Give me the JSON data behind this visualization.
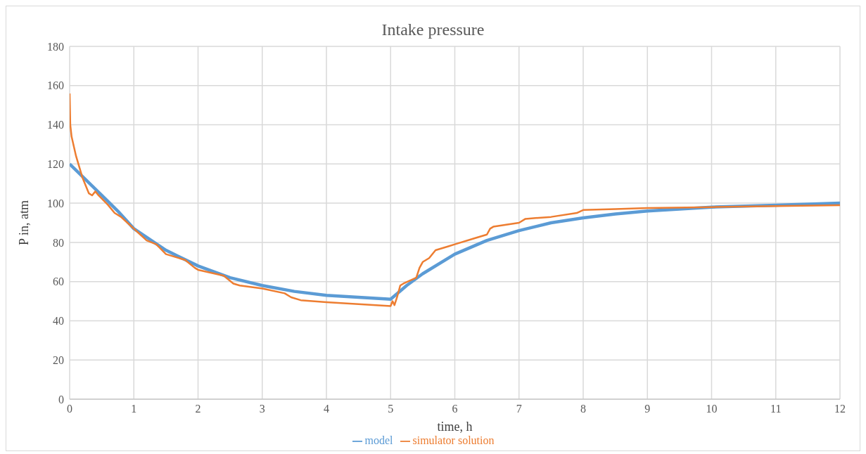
{
  "chart_data": {
    "type": "line",
    "title": "Intake pressure",
    "xlabel": "time, h",
    "ylabel": "P in, atm",
    "xlim": [
      0,
      12
    ],
    "xticks": [
      0,
      1,
      2,
      3,
      4,
      5,
      6,
      7,
      8,
      9,
      10,
      11,
      12
    ],
    "ylim": [
      0,
      180
    ],
    "yticks": [
      0,
      20,
      40,
      60,
      80,
      100,
      120,
      140,
      160,
      180
    ],
    "grid": true,
    "legend": "bottom",
    "marker": "none",
    "series": [
      {
        "name": "model",
        "color": "#5b9bd5",
        "x": [
          0,
          0.25,
          0.5,
          0.75,
          1,
          1.5,
          2,
          2.5,
          3,
          3.5,
          4,
          4.5,
          5,
          5.25,
          5.5,
          6,
          6.5,
          7,
          7.5,
          8,
          8.5,
          9,
          10,
          11,
          12
        ],
        "values": [
          120,
          112,
          104,
          96,
          87,
          76,
          68,
          62,
          58,
          55,
          53,
          52,
          51,
          58,
          64,
          74,
          81,
          86,
          90,
          92.5,
          94.5,
          96,
          98,
          99,
          100
        ]
      },
      {
        "name": "simulator solution",
        "color": "#ed7d31",
        "x": [
          0,
          0.01,
          0.03,
          0.1,
          0.2,
          0.3,
          0.35,
          0.4,
          0.45,
          0.6,
          0.7,
          0.8,
          0.9,
          1,
          1.1,
          1.2,
          1.35,
          1.5,
          1.6,
          1.8,
          1.95,
          2,
          2.4,
          2.55,
          2.65,
          3,
          3.35,
          3.45,
          3.6,
          4,
          4.5,
          5,
          5.03,
          5.06,
          5.1,
          5.15,
          5.2,
          5.4,
          5.45,
          5.5,
          5.6,
          5.7,
          5.9,
          6,
          6.3,
          6.5,
          6.55,
          6.6,
          7,
          7.1,
          7.5,
          7.9,
          8,
          8.5,
          9,
          10,
          11,
          12
        ],
        "values": [
          156,
          140,
          134,
          124,
          113,
          105,
          104,
          106,
          104,
          99,
          95,
          93,
          90,
          87,
          84,
          81,
          79,
          74,
          73,
          71,
          67,
          66,
          63,
          59,
          58,
          56.5,
          54,
          52,
          50.5,
          49.5,
          48.5,
          47.5,
          50,
          48,
          52,
          58,
          59,
          62,
          67,
          70,
          72,
          76,
          78,
          79,
          82,
          84,
          87,
          88,
          90,
          92,
          93,
          95,
          96.5,
          97,
          97.5,
          98,
          98.5,
          99
        ]
      }
    ]
  }
}
